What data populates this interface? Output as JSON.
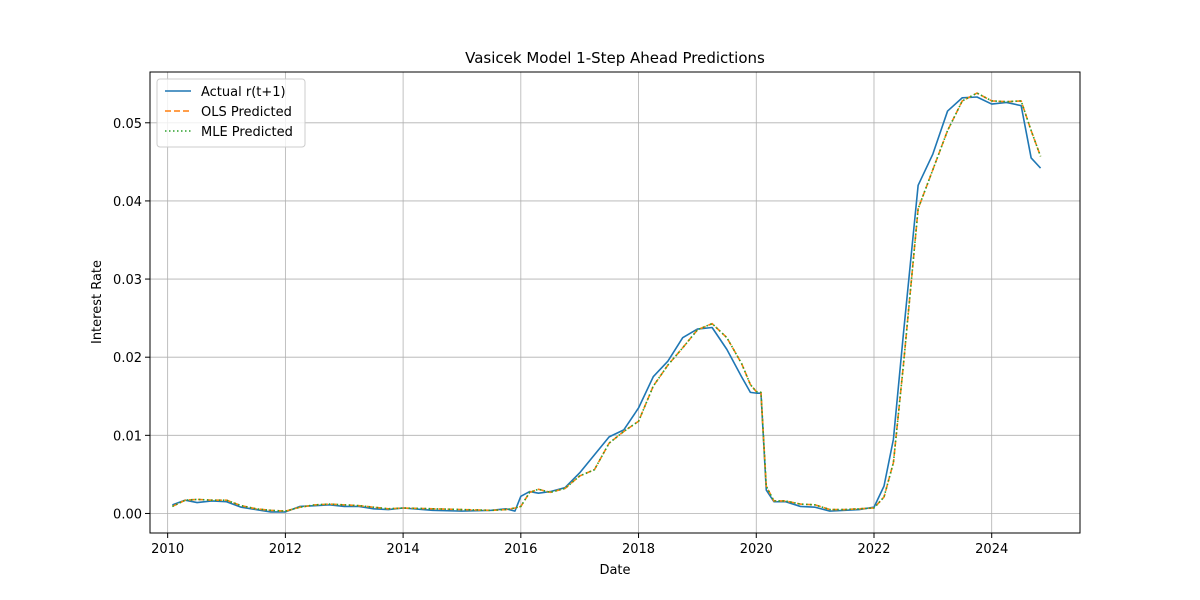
{
  "chart_data": {
    "type": "line",
    "title": "Vasicek Model 1-Step Ahead Predictions",
    "xlabel": "Date",
    "ylabel": "Interest Rate",
    "xlim": [
      2009.7,
      2025.5
    ],
    "ylim": [
      -0.0025,
      0.0565
    ],
    "x_ticks": [
      2010,
      2012,
      2014,
      2016,
      2018,
      2020,
      2022,
      2024
    ],
    "x_tick_labels": [
      "2010",
      "2012",
      "2014",
      "2016",
      "2018",
      "2020",
      "2022",
      "2024"
    ],
    "y_ticks": [
      0.0,
      0.01,
      0.02,
      0.03,
      0.04,
      0.05
    ],
    "y_tick_labels": [
      "0.00",
      "0.01",
      "0.02",
      "0.03",
      "0.04",
      "0.05"
    ],
    "grid": true,
    "legend_position": "top-left",
    "series": [
      {
        "name": "Actual r(t+1)",
        "color": "#1f77b4",
        "style": "solid",
        "x": [
          2010.08,
          2010.3,
          2010.5,
          2010.75,
          2011.0,
          2011.25,
          2011.5,
          2011.75,
          2012.0,
          2012.25,
          2012.5,
          2012.75,
          2013.0,
          2013.25,
          2013.5,
          2013.75,
          2014.0,
          2014.5,
          2015.0,
          2015.5,
          2015.75,
          2015.9,
          2016.0,
          2016.15,
          2016.3,
          2016.5,
          2016.75,
          2017.0,
          2017.25,
          2017.5,
          2017.75,
          2018.0,
          2018.25,
          2018.5,
          2018.75,
          2019.0,
          2019.25,
          2019.5,
          2019.75,
          2019.9,
          2020.0,
          2020.08,
          2020.17,
          2020.3,
          2020.5,
          2020.75,
          2021.0,
          2021.25,
          2021.5,
          2021.75,
          2022.0,
          2022.17,
          2022.33,
          2022.5,
          2022.75,
          2023.0,
          2023.25,
          2023.5,
          2023.75,
          2024.0,
          2024.25,
          2024.5,
          2024.67,
          2024.83
        ],
        "values": [
          0.0011,
          0.0017,
          0.0014,
          0.0016,
          0.0015,
          0.0008,
          0.0005,
          0.0002,
          0.0002,
          0.0009,
          0.001,
          0.0011,
          0.0009,
          0.0009,
          0.0006,
          0.0005,
          0.0007,
          0.0004,
          0.0003,
          0.0004,
          0.0006,
          0.0003,
          0.0022,
          0.0028,
          0.0026,
          0.0028,
          0.0033,
          0.0052,
          0.0075,
          0.0098,
          0.0107,
          0.0135,
          0.0175,
          0.0195,
          0.0225,
          0.0236,
          0.0238,
          0.021,
          0.0175,
          0.0155,
          0.0154,
          0.0154,
          0.003,
          0.0015,
          0.0015,
          0.0009,
          0.0008,
          0.0003,
          0.0004,
          0.0005,
          0.0008,
          0.0035,
          0.0095,
          0.023,
          0.042,
          0.046,
          0.0515,
          0.0532,
          0.0533,
          0.0524,
          0.0526,
          0.0522,
          0.0455,
          0.0442
        ]
      },
      {
        "name": "OLS Predicted",
        "color": "#ff7f0e",
        "style": "dashed",
        "x": [
          2010.08,
          2010.3,
          2010.5,
          2010.75,
          2011.0,
          2011.25,
          2011.5,
          2011.75,
          2012.0,
          2012.25,
          2012.5,
          2012.75,
          2013.0,
          2013.25,
          2013.5,
          2013.75,
          2014.0,
          2014.5,
          2015.0,
          2015.5,
          2015.75,
          2015.9,
          2016.0,
          2016.15,
          2016.3,
          2016.5,
          2016.75,
          2017.0,
          2017.25,
          2017.5,
          2017.75,
          2018.0,
          2018.25,
          2018.5,
          2018.75,
          2019.0,
          2019.25,
          2019.5,
          2019.75,
          2019.9,
          2020.0,
          2020.08,
          2020.17,
          2020.3,
          2020.5,
          2020.75,
          2021.0,
          2021.25,
          2021.5,
          2021.75,
          2022.0,
          2022.17,
          2022.33,
          2022.5,
          2022.75,
          2023.0,
          2023.25,
          2023.5,
          2023.75,
          2024.0,
          2024.25,
          2024.5,
          2024.67,
          2024.83
        ],
        "values": [
          0.0009,
          0.0017,
          0.0018,
          0.0017,
          0.0017,
          0.001,
          0.0006,
          0.0004,
          0.0003,
          0.0008,
          0.0011,
          0.0012,
          0.0011,
          0.001,
          0.0008,
          0.0006,
          0.0007,
          0.0006,
          0.0005,
          0.0004,
          0.0005,
          0.0007,
          0.0009,
          0.0027,
          0.0031,
          0.0027,
          0.0032,
          0.0048,
          0.0056,
          0.009,
          0.0105,
          0.0118,
          0.0163,
          0.019,
          0.0212,
          0.0235,
          0.0243,
          0.0225,
          0.0192,
          0.0165,
          0.0156,
          0.0155,
          0.0035,
          0.0016,
          0.0016,
          0.0012,
          0.0011,
          0.0005,
          0.0005,
          0.0006,
          0.0007,
          0.0021,
          0.0065,
          0.019,
          0.039,
          0.044,
          0.049,
          0.0528,
          0.0538,
          0.0528,
          0.0527,
          0.0528,
          0.049,
          0.0457
        ]
      },
      {
        "name": "MLE Predicted",
        "color": "#2ca02c",
        "style": "dotted",
        "x": [
          2010.08,
          2010.3,
          2010.5,
          2010.75,
          2011.0,
          2011.25,
          2011.5,
          2011.75,
          2012.0,
          2012.25,
          2012.5,
          2012.75,
          2013.0,
          2013.25,
          2013.5,
          2013.75,
          2014.0,
          2014.5,
          2015.0,
          2015.5,
          2015.75,
          2015.9,
          2016.0,
          2016.15,
          2016.3,
          2016.5,
          2016.75,
          2017.0,
          2017.25,
          2017.5,
          2017.75,
          2018.0,
          2018.25,
          2018.5,
          2018.75,
          2019.0,
          2019.25,
          2019.5,
          2019.75,
          2019.9,
          2020.0,
          2020.08,
          2020.17,
          2020.3,
          2020.5,
          2020.75,
          2021.0,
          2021.25,
          2021.5,
          2021.75,
          2022.0,
          2022.17,
          2022.33,
          2022.5,
          2022.75,
          2023.0,
          2023.25,
          2023.5,
          2023.75,
          2024.0,
          2024.25,
          2024.5,
          2024.67,
          2024.83
        ],
        "values": [
          0.0009,
          0.0017,
          0.0018,
          0.0017,
          0.0017,
          0.001,
          0.0006,
          0.0004,
          0.0003,
          0.0008,
          0.0011,
          0.0012,
          0.0011,
          0.001,
          0.0008,
          0.0006,
          0.0007,
          0.0006,
          0.0005,
          0.0004,
          0.0005,
          0.0007,
          0.0009,
          0.0027,
          0.0031,
          0.0027,
          0.0032,
          0.0048,
          0.0056,
          0.009,
          0.0105,
          0.0118,
          0.0163,
          0.019,
          0.0212,
          0.0235,
          0.0243,
          0.0225,
          0.0192,
          0.0165,
          0.0156,
          0.0155,
          0.0035,
          0.0016,
          0.0016,
          0.0012,
          0.0011,
          0.0005,
          0.0005,
          0.0006,
          0.0007,
          0.0021,
          0.0065,
          0.019,
          0.039,
          0.044,
          0.049,
          0.0528,
          0.0538,
          0.0528,
          0.0527,
          0.0528,
          0.049,
          0.0457
        ]
      }
    ]
  }
}
